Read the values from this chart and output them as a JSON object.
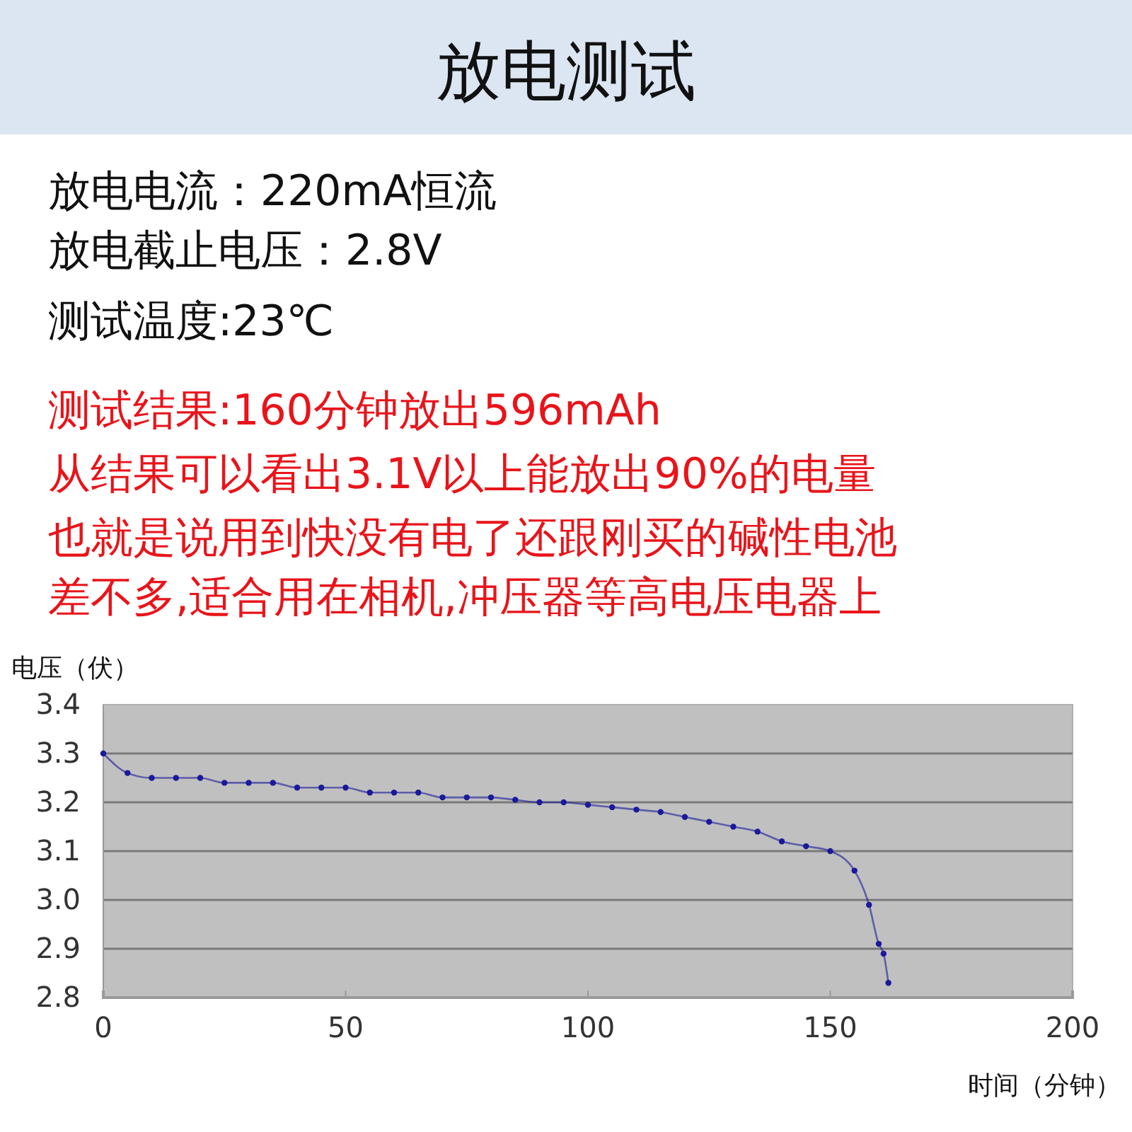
{
  "chart_data": {
    "type": "line",
    "title": "放电测试",
    "annotations": [
      "放电电流：220mA恒流",
      "放电截止电压：2.8V",
      "测试温度:23℃",
      "测试结果:160分钟放出596mAh",
      "从结果可以看出3.1V以上能放出90%的电量",
      "也就是说用到快没有电了还跟刚买的碱性电池",
      "差不多,适合用在相机,冲压器等高电压电器上"
    ],
    "xlabel": "时间（分钟）",
    "ylabel": "电压（伏）",
    "xlim": [
      0,
      200
    ],
    "xticks": [
      0,
      50,
      100,
      150,
      200
    ],
    "ylim": [
      2.8,
      3.4
    ],
    "yticks": [
      {
        "value": 2.8,
        "label": "2.8"
      },
      {
        "value": 2.9,
        "label": "2.9"
      },
      {
        "value": 3.0,
        "label": "3.0"
      },
      {
        "value": 3.1,
        "label": "3.1"
      },
      {
        "value": 3.2,
        "label": "3.2"
      },
      {
        "value": 3.3,
        "label": "3.3"
      },
      {
        "value": 3.4,
        "label": "3.4"
      }
    ],
    "grid": "y",
    "marker": "circle",
    "line_style": "solid",
    "x": [
      0,
      5,
      10,
      15,
      20,
      25,
      30,
      35,
      40,
      45,
      50,
      55,
      60,
      65,
      70,
      75,
      80,
      85,
      90,
      95,
      100,
      105,
      110,
      115,
      120,
      125,
      130,
      135,
      140,
      145,
      150,
      155,
      158,
      160,
      161,
      162
    ],
    "series": [
      {
        "color": "#1a1a9a",
        "values": [
          3.3,
          3.26,
          3.25,
          3.25,
          3.25,
          3.24,
          3.24,
          3.24,
          3.23,
          3.23,
          3.23,
          3.22,
          3.22,
          3.22,
          3.21,
          3.21,
          3.21,
          3.205,
          3.2,
          3.2,
          3.195,
          3.19,
          3.185,
          3.18,
          3.17,
          3.16,
          3.15,
          3.14,
          3.12,
          3.11,
          3.1,
          3.06,
          2.99,
          2.91,
          2.89,
          2.83
        ]
      }
    ]
  }
}
